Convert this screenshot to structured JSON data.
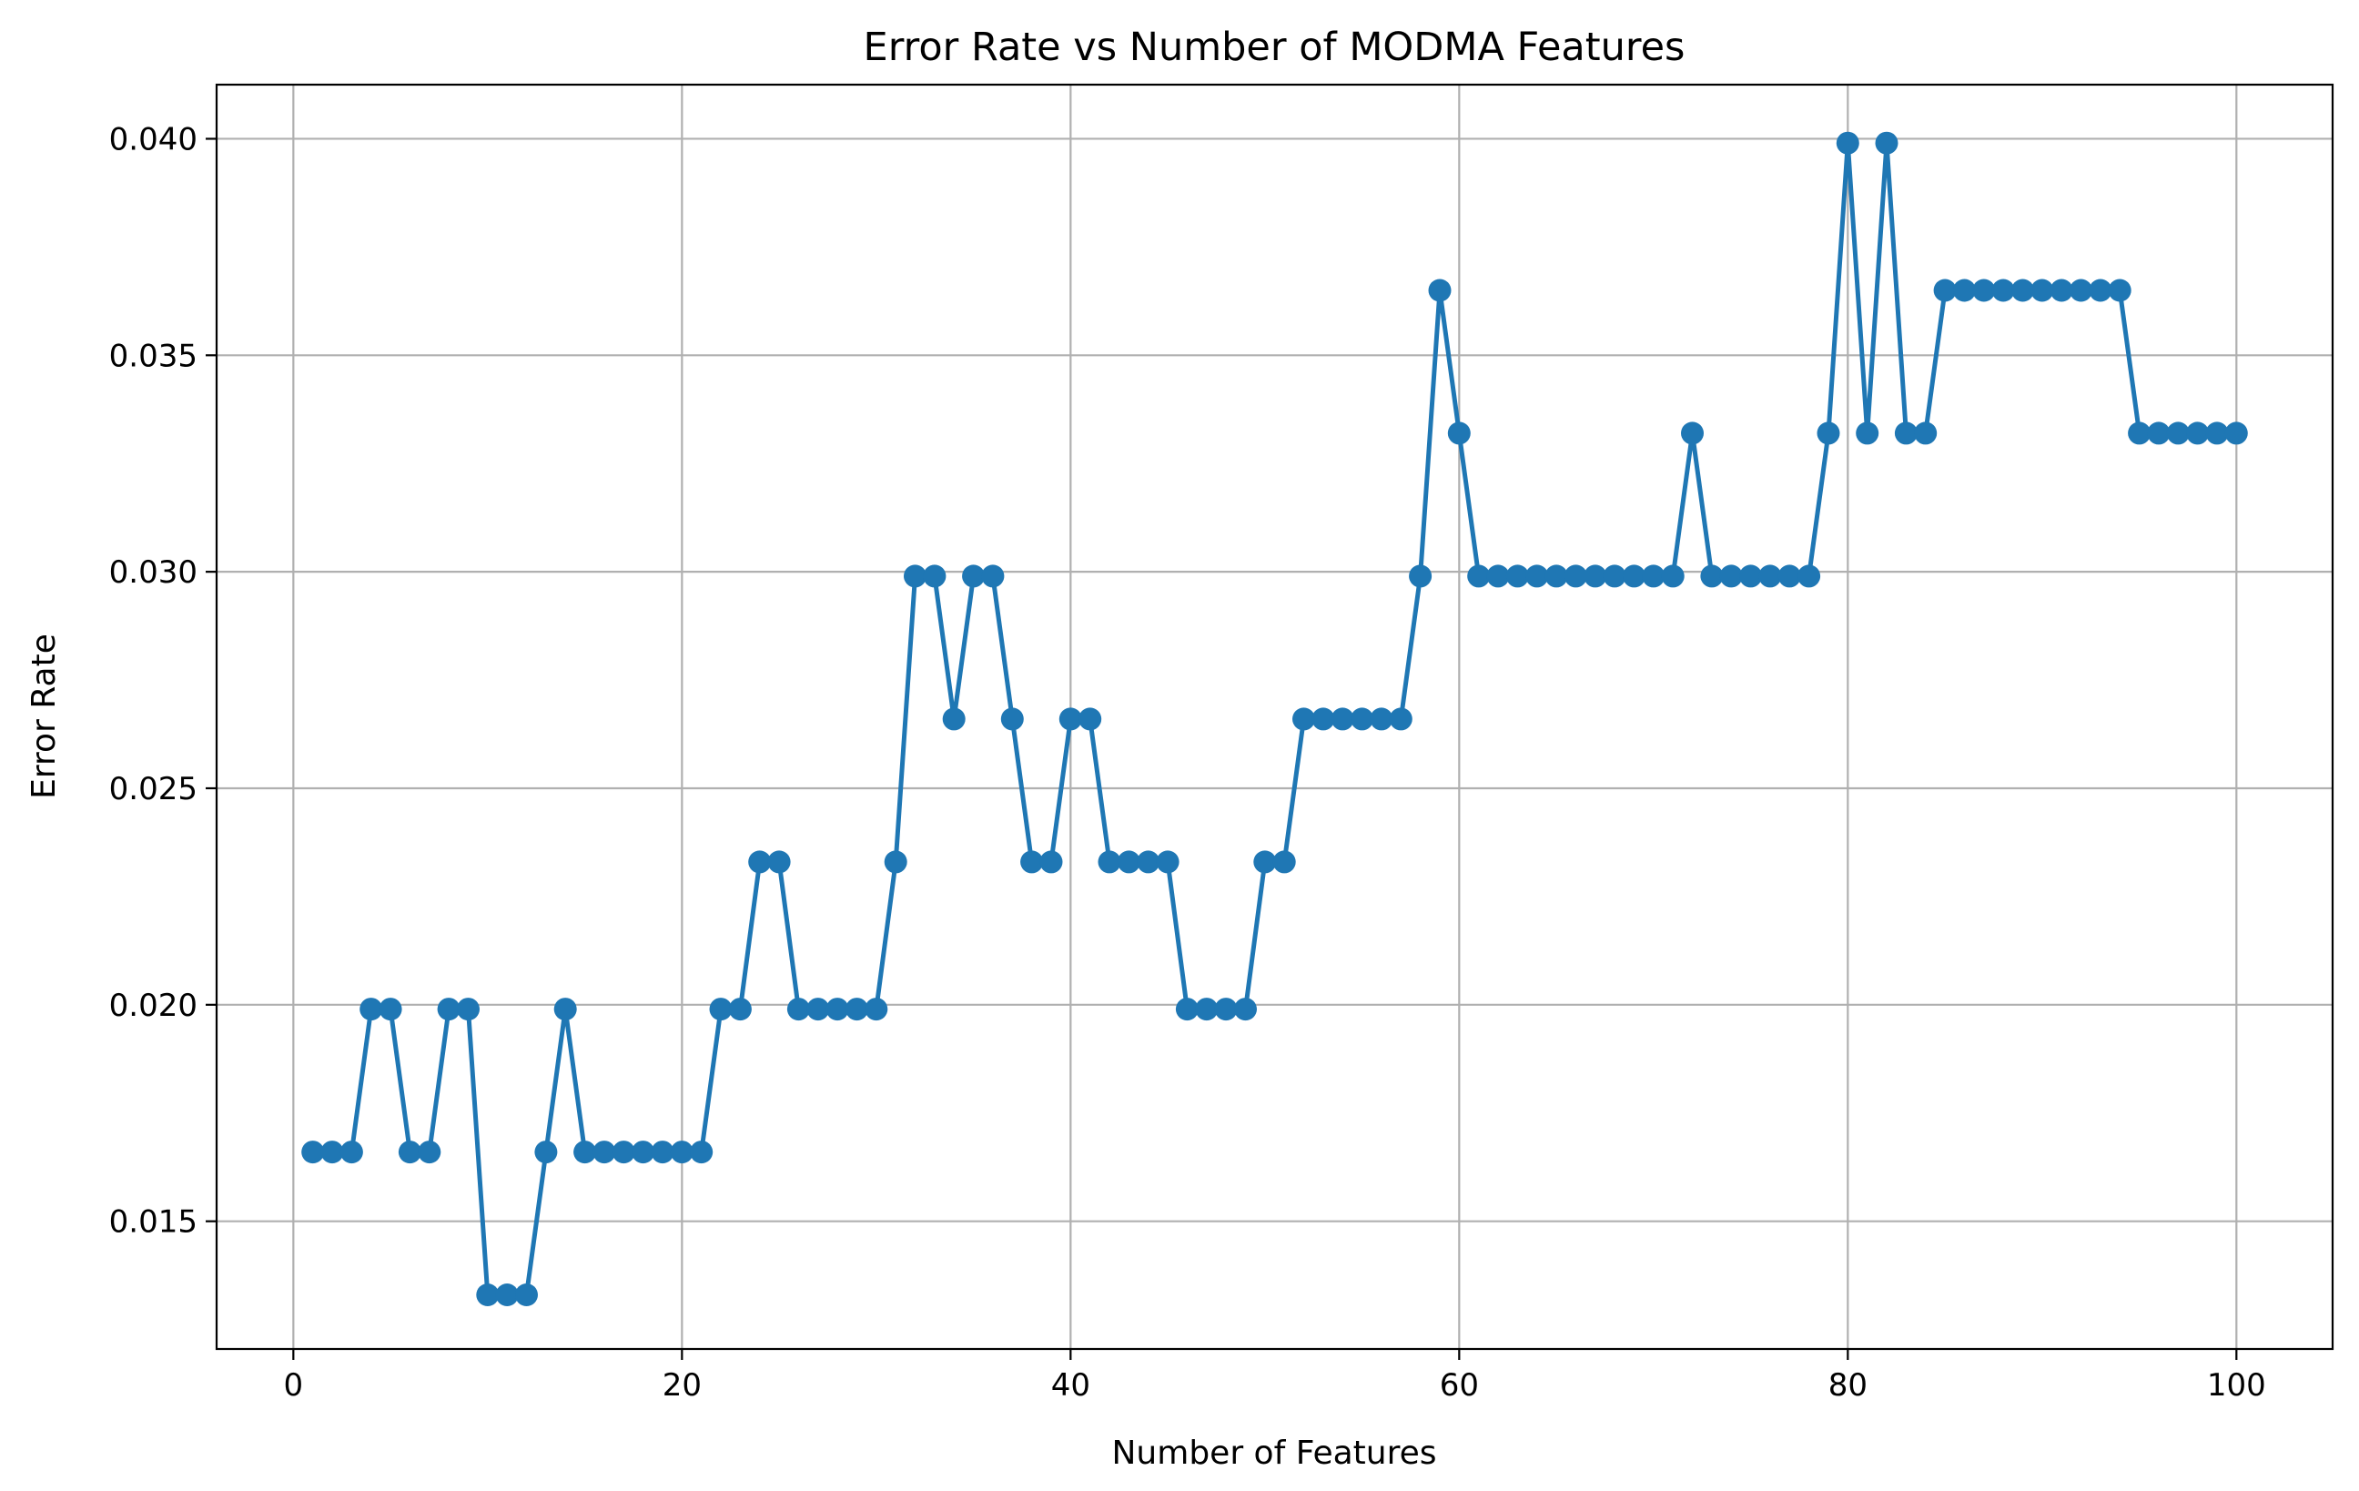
{
  "chart_data": {
    "type": "line",
    "title": "Error Rate vs Number of MODMA Features",
    "xlabel": "Number of Features",
    "ylabel": "Error Rate",
    "xlim": [
      -3.95,
      104.95
    ],
    "ylim": [
      0.01205,
      0.04125
    ],
    "xticks": [
      0,
      20,
      40,
      60,
      80,
      100
    ],
    "xtick_labels": [
      "0",
      "20",
      "40",
      "60",
      "80",
      "100"
    ],
    "yticks": [
      0.015,
      0.02,
      0.025,
      0.03,
      0.035,
      0.04
    ],
    "ytick_labels": [
      "0.015",
      "0.020",
      "0.025",
      "0.030",
      "0.035",
      "0.040"
    ],
    "grid": true,
    "marker": "circle",
    "color": "#1f77b4",
    "series": [
      {
        "x": [
          1,
          2,
          3,
          4,
          5,
          6,
          7,
          8,
          9,
          10,
          11,
          12,
          13,
          14,
          15,
          16,
          17,
          18,
          19,
          20,
          21,
          22,
          23,
          24,
          25,
          26,
          27,
          28,
          29,
          30,
          31,
          32,
          33,
          34,
          35,
          36,
          37,
          38,
          39,
          40,
          41,
          42,
          43,
          44,
          45,
          46,
          47,
          48,
          49,
          50,
          51,
          52,
          53,
          54,
          55,
          56,
          57,
          58,
          59,
          60,
          61,
          62,
          63,
          64,
          65,
          66,
          67,
          68,
          69,
          70,
          71,
          72,
          73,
          74,
          75,
          76,
          77,
          78,
          79,
          80,
          81,
          82,
          83,
          84,
          85,
          86,
          87,
          88,
          89,
          90,
          91,
          92,
          93,
          94,
          95,
          96,
          97,
          98,
          99,
          100
        ],
        "y": [
          0.0166,
          0.0166,
          0.0166,
          0.0199,
          0.0199,
          0.0166,
          0.0166,
          0.0199,
          0.0199,
          0.0133,
          0.0133,
          0.0133,
          0.0166,
          0.0199,
          0.0166,
          0.0166,
          0.0166,
          0.0166,
          0.0166,
          0.0166,
          0.0166,
          0.0199,
          0.0199,
          0.0233,
          0.0233,
          0.0199,
          0.0199,
          0.0199,
          0.0199,
          0.0199,
          0.0233,
          0.0299,
          0.0299,
          0.0266,
          0.0299,
          0.0299,
          0.0266,
          0.0233,
          0.0233,
          0.0266,
          0.0266,
          0.0233,
          0.0233,
          0.0233,
          0.0233,
          0.0199,
          0.0199,
          0.0199,
          0.0199,
          0.0233,
          0.0233,
          0.0266,
          0.0266,
          0.0266,
          0.0266,
          0.0266,
          0.0266,
          0.0299,
          0.0365,
          0.0332,
          0.0299,
          0.0299,
          0.0299,
          0.0299,
          0.0299,
          0.0299,
          0.0299,
          0.0299,
          0.0299,
          0.0299,
          0.0299,
          0.0332,
          0.0299,
          0.0299,
          0.0299,
          0.0299,
          0.0299,
          0.0299,
          0.0332,
          0.0399,
          0.0332,
          0.0399,
          0.0332,
          0.0332,
          0.0365,
          0.0365,
          0.0365,
          0.0365,
          0.0365,
          0.0365,
          0.0365,
          0.0365,
          0.0365,
          0.0365,
          0.0332,
          0.0332,
          0.0332,
          0.0332,
          0.0332,
          0.0332
        ]
      }
    ]
  }
}
